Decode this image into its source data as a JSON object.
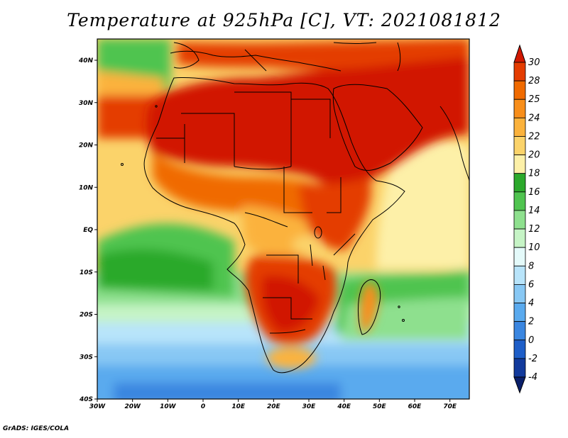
{
  "title": "Temperature at 925hPa [C], VT: 2021081812",
  "credit": "GrADS: IGES/COLA",
  "map": {
    "lon_ticks": [
      "30W",
      "20W",
      "10W",
      "0",
      "10E",
      "20E",
      "30E",
      "40E",
      "50E",
      "60E",
      "70E"
    ],
    "lat_ticks": [
      "40N",
      "30N",
      "20N",
      "10N",
      "EQ",
      "10S",
      "20S",
      "30S",
      "40S"
    ]
  },
  "colorbar": {
    "labels": [
      "30",
      "28",
      "25",
      "24",
      "22",
      "20",
      "18",
      "16",
      "14",
      "12",
      "10",
      "8",
      "6",
      "4",
      "2",
      "0",
      "-2",
      "-4"
    ],
    "colors": [
      "#d11800",
      "#e43c00",
      "#f06a00",
      "#f88e1a",
      "#fbb23c",
      "#fbd36a",
      "#fdf0a8",
      "#2ca92c",
      "#50c450",
      "#8ee08e",
      "#c6f4c6",
      "#e4fafa",
      "#b8e4fa",
      "#88c8f4",
      "#5aaaee",
      "#3a86e0",
      "#1e5ec8",
      "#123a9c",
      "#0a1f6a"
    ]
  }
}
